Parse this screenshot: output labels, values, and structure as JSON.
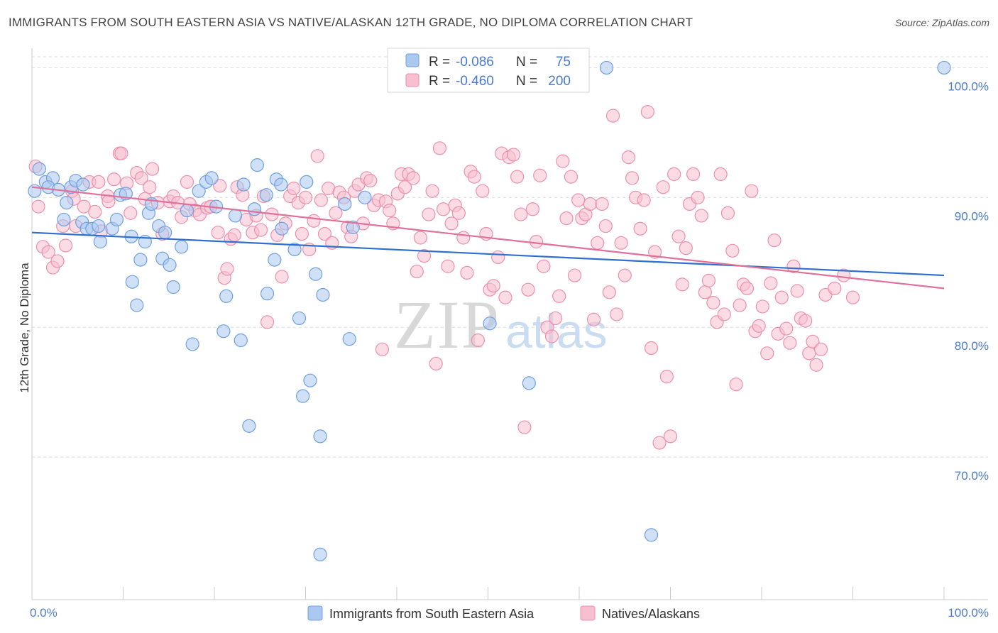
{
  "title": "IMMIGRANTS FROM SOUTH EASTERN ASIA VS NATIVE/ALASKAN 12TH GRADE, NO DIPLOMA CORRELATION CHART",
  "source": "Source: ZipAtlas.com",
  "watermark": {
    "zip": "ZIP",
    "atlas": "atlas"
  },
  "legend": {
    "r_label": "R =",
    "n_label": "N =",
    "rows": [
      {
        "r": "-0.086",
        "n": "75"
      },
      {
        "r": "-0.460",
        "n": "200"
      }
    ]
  },
  "colors": {
    "blue_fill": "#aac8f0",
    "blue_stroke": "#6f9fe0",
    "blue_line": "#2f6fcf",
    "pink_fill": "#f7bfd0",
    "pink_stroke": "#ec8fae",
    "pink_line": "#e0709a",
    "axis_text": "#4a7bd0",
    "grid": "#dcdcdc"
  },
  "chart_data": {
    "type": "scatter",
    "xlabel": "",
    "ylabel": "12th Grade, No Diploma",
    "xlim": [
      0,
      100
    ],
    "ylim": [
      60,
      101.5
    ],
    "x_tick_labels": [
      "0.0%",
      "100.0%"
    ],
    "y_ticks": [
      70,
      80,
      90,
      100
    ],
    "y_tick_labels": [
      "70.0%",
      "80.0%",
      "90.0%",
      "100.0%"
    ],
    "grid": true,
    "legend_position": "top-center",
    "series": [
      {
        "name": "Immigrants from South Eastern Asia",
        "color": "#6f9fe0",
        "trend": {
          "x": [
            0,
            100
          ],
          "y": [
            87.3,
            84.0
          ]
        },
        "points": [
          [
            0.3,
            90.5
          ],
          [
            0.8,
            92.2
          ],
          [
            1.5,
            91.2
          ],
          [
            2.3,
            91.5
          ],
          [
            1.8,
            90.8
          ],
          [
            2.9,
            90.6
          ],
          [
            3.5,
            88.3
          ],
          [
            3.8,
            89.6
          ],
          [
            4.3,
            90.8
          ],
          [
            4.8,
            91.3
          ],
          [
            5.6,
            91.0
          ],
          [
            5.5,
            88.1
          ],
          [
            6.0,
            87.6
          ],
          [
            6.6,
            87.6
          ],
          [
            7.5,
            86.6
          ],
          [
            7.3,
            87.8
          ],
          [
            8.8,
            87.6
          ],
          [
            9.7,
            90.2
          ],
          [
            9.3,
            88.3
          ],
          [
            10.3,
            90.3
          ],
          [
            11.0,
            83.5
          ],
          [
            10.9,
            87.0
          ],
          [
            11.5,
            81.7
          ],
          [
            11.9,
            85.2
          ],
          [
            12.4,
            86.6
          ],
          [
            12.8,
            88.8
          ],
          [
            13.1,
            89.5
          ],
          [
            13.9,
            87.8
          ],
          [
            14.3,
            85.3
          ],
          [
            14.6,
            87.3
          ],
          [
            15.1,
            84.8
          ],
          [
            15.5,
            83.1
          ],
          [
            16.4,
            86.2
          ],
          [
            17.0,
            89.0
          ],
          [
            17.6,
            78.7
          ],
          [
            18.3,
            90.5
          ],
          [
            19.1,
            91.2
          ],
          [
            19.7,
            91.5
          ],
          [
            20.2,
            89.3
          ],
          [
            21.3,
            82.4
          ],
          [
            21.0,
            79.7
          ],
          [
            22.3,
            88.6
          ],
          [
            22.9,
            79.0
          ],
          [
            23.2,
            91.0
          ],
          [
            23.8,
            72.4
          ],
          [
            24.4,
            89.1
          ],
          [
            24.7,
            92.5
          ],
          [
            25.7,
            90.2
          ],
          [
            25.8,
            82.6
          ],
          [
            26.6,
            85.2
          ],
          [
            26.8,
            91.4
          ],
          [
            27.3,
            91.0
          ],
          [
            27.4,
            87.6
          ],
          [
            28.8,
            86.0
          ],
          [
            29.3,
            80.7
          ],
          [
            29.7,
            74.7
          ],
          [
            30.1,
            91.2
          ],
          [
            30.5,
            75.9
          ],
          [
            31.1,
            84.1
          ],
          [
            31.6,
            71.6
          ],
          [
            31.9,
            82.5
          ],
          [
            31.6,
            62.5
          ],
          [
            34.3,
            89.5
          ],
          [
            34.8,
            79.1
          ],
          [
            35.2,
            87.7
          ],
          [
            36.5,
            90.0
          ],
          [
            50.2,
            80.3
          ],
          [
            54.5,
            75.7
          ],
          [
            58.8,
            100.0
          ],
          [
            63.0,
            100.0
          ],
          [
            67.9,
            64.0
          ],
          [
            100.0,
            100.0
          ]
        ]
      },
      {
        "name": "Natives/Alaskans",
        "color": "#ec8fae",
        "trend": {
          "x": [
            0,
            100
          ],
          "y": [
            90.8,
            83.0
          ]
        },
        "points": [
          [
            0.4,
            92.4
          ],
          [
            0.7,
            89.3
          ],
          [
            1.2,
            86.2
          ],
          [
            1.8,
            85.8
          ],
          [
            2.3,
            84.6
          ],
          [
            2.8,
            85.1
          ],
          [
            3.4,
            87.8
          ],
          [
            3.7,
            86.3
          ],
          [
            4.4,
            90.5
          ],
          [
            4.6,
            89.9
          ],
          [
            4.8,
            87.8
          ],
          [
            5.7,
            89.3
          ],
          [
            6.3,
            91.2
          ],
          [
            6.9,
            88.9
          ],
          [
            7.3,
            91.2
          ],
          [
            7.6,
            87.4
          ],
          [
            8.3,
            90.1
          ],
          [
            8.4,
            89.7
          ],
          [
            9.0,
            91.4
          ],
          [
            9.6,
            93.4
          ],
          [
            9.8,
            93.4
          ],
          [
            10.4,
            91.1
          ],
          [
            10.8,
            88.8
          ],
          [
            11.5,
            91.9
          ],
          [
            12.0,
            91.5
          ],
          [
            12.4,
            89.9
          ],
          [
            12.9,
            90.8
          ],
          [
            13.2,
            92.2
          ],
          [
            13.8,
            89.6
          ],
          [
            14.3,
            87.2
          ],
          [
            15.1,
            89.7
          ],
          [
            15.5,
            90.1
          ],
          [
            16.0,
            89.6
          ],
          [
            16.4,
            88.5
          ],
          [
            17.0,
            91.2
          ],
          [
            17.3,
            89.5
          ],
          [
            17.9,
            89.0
          ],
          [
            18.4,
            88.7
          ],
          [
            19.2,
            89.2
          ],
          [
            19.6,
            89.3
          ],
          [
            20.4,
            87.3
          ],
          [
            20.6,
            90.9
          ],
          [
            21.1,
            83.8
          ],
          [
            21.4,
            84.5
          ],
          [
            21.8,
            86.8
          ],
          [
            22.2,
            87.1
          ],
          [
            22.5,
            90.8
          ],
          [
            23.1,
            90.2
          ],
          [
            23.5,
            88.3
          ],
          [
            24.2,
            87.3
          ],
          [
            24.6,
            88.6
          ],
          [
            25.1,
            87.5
          ],
          [
            25.4,
            90.1
          ],
          [
            25.8,
            80.4
          ],
          [
            26.3,
            88.7
          ],
          [
            26.9,
            87.1
          ],
          [
            27.4,
            83.9
          ],
          [
            27.8,
            88.0
          ],
          [
            28.3,
            90.1
          ],
          [
            28.7,
            90.7
          ],
          [
            29.2,
            89.6
          ],
          [
            29.6,
            87.2
          ],
          [
            30.0,
            90.0
          ],
          [
            30.4,
            86.0
          ],
          [
            30.9,
            88.2
          ],
          [
            31.3,
            93.2
          ],
          [
            31.7,
            89.8
          ],
          [
            32.1,
            87.2
          ],
          [
            32.5,
            90.7
          ],
          [
            32.9,
            86.5
          ],
          [
            33.3,
            88.8
          ],
          [
            33.7,
            90.4
          ],
          [
            34.2,
            90.0
          ],
          [
            34.6,
            87.7
          ],
          [
            35.0,
            87.0
          ],
          [
            35.4,
            90.5
          ],
          [
            35.8,
            91.0
          ],
          [
            36.3,
            88.0
          ],
          [
            36.7,
            91.5
          ],
          [
            37.1,
            91.3
          ],
          [
            37.5,
            89.4
          ],
          [
            38.0,
            89.8
          ],
          [
            38.4,
            78.3
          ],
          [
            38.8,
            89.7
          ],
          [
            39.2,
            89.0
          ],
          [
            39.6,
            88.0
          ],
          [
            40.1,
            90.3
          ],
          [
            40.5,
            91.8
          ],
          [
            40.9,
            90.8
          ],
          [
            41.3,
            91.8
          ],
          [
            41.8,
            91.5
          ],
          [
            42.2,
            84.3
          ],
          [
            42.6,
            86.9
          ],
          [
            43.0,
            85.5
          ],
          [
            43.5,
            88.7
          ],
          [
            43.9,
            90.5
          ],
          [
            44.3,
            77.2
          ],
          [
            44.7,
            93.8
          ],
          [
            45.1,
            89.1
          ],
          [
            45.6,
            84.7
          ],
          [
            46.0,
            88.0
          ],
          [
            46.4,
            89.4
          ],
          [
            46.8,
            88.8
          ],
          [
            47.3,
            86.9
          ],
          [
            47.7,
            84.2
          ],
          [
            48.1,
            92.0
          ],
          [
            48.5,
            91.6
          ],
          [
            48.9,
            79.0
          ],
          [
            49.4,
            90.5
          ],
          [
            49.8,
            87.2
          ],
          [
            50.2,
            82.9
          ],
          [
            50.6,
            83.2
          ],
          [
            51.1,
            85.4
          ],
          [
            51.5,
            93.4
          ],
          [
            51.9,
            82.3
          ],
          [
            52.3,
            93.1
          ],
          [
            52.8,
            93.3
          ],
          [
            53.2,
            91.6
          ],
          [
            53.6,
            88.7
          ],
          [
            54.0,
            72.3
          ],
          [
            54.4,
            82.9
          ],
          [
            54.9,
            89.1
          ],
          [
            55.3,
            86.6
          ],
          [
            55.7,
            91.7
          ],
          [
            56.1,
            84.7
          ],
          [
            56.5,
            80.0
          ],
          [
            57.0,
            79.3
          ],
          [
            57.4,
            80.7
          ],
          [
            57.8,
            82.4
          ],
          [
            58.2,
            92.8
          ],
          [
            58.6,
            88.4
          ],
          [
            59.1,
            91.6
          ],
          [
            59.5,
            84.0
          ],
          [
            59.9,
            89.8
          ],
          [
            60.3,
            88.4
          ],
          [
            60.7,
            88.7
          ],
          [
            61.2,
            89.5
          ],
          [
            61.6,
            80.6
          ],
          [
            62.0,
            86.5
          ],
          [
            62.5,
            89.5
          ],
          [
            62.9,
            87.8
          ],
          [
            63.3,
            82.7
          ],
          [
            63.7,
            96.3
          ],
          [
            64.1,
            81.0
          ],
          [
            64.6,
            86.5
          ],
          [
            65.0,
            84.0
          ],
          [
            65.4,
            93.1
          ],
          [
            65.8,
            91.5
          ],
          [
            66.2,
            90.0
          ],
          [
            66.7,
            87.6
          ],
          [
            67.1,
            89.8
          ],
          [
            67.5,
            96.6
          ],
          [
            67.9,
            78.4
          ],
          [
            68.3,
            85.8
          ],
          [
            68.8,
            71.1
          ],
          [
            69.2,
            90.8
          ],
          [
            69.6,
            76.2
          ],
          [
            70.0,
            71.6
          ],
          [
            70.4,
            91.8
          ],
          [
            70.9,
            87.0
          ],
          [
            71.3,
            83.3
          ],
          [
            71.7,
            86.1
          ],
          [
            72.1,
            89.5
          ],
          [
            72.5,
            91.8
          ],
          [
            73.0,
            90.0
          ],
          [
            73.4,
            88.6
          ],
          [
            73.8,
            82.7
          ],
          [
            74.2,
            83.6
          ],
          [
            74.7,
            81.9
          ],
          [
            75.1,
            80.4
          ],
          [
            75.5,
            91.8
          ],
          [
            75.9,
            81.0
          ],
          [
            76.3,
            88.8
          ],
          [
            76.8,
            85.9
          ],
          [
            77.2,
            75.6
          ],
          [
            77.6,
            81.7
          ],
          [
            78.0,
            83.3
          ],
          [
            78.4,
            83.0
          ],
          [
            78.9,
            90.5
          ],
          [
            79.3,
            79.7
          ],
          [
            79.7,
            80.1
          ],
          [
            80.1,
            81.6
          ],
          [
            80.6,
            78.0
          ],
          [
            81.0,
            83.4
          ],
          [
            81.4,
            86.7
          ],
          [
            81.8,
            79.5
          ],
          [
            82.2,
            82.3
          ],
          [
            82.7,
            79.9
          ],
          [
            83.1,
            78.8
          ],
          [
            83.5,
            84.7
          ],
          [
            83.9,
            82.8
          ],
          [
            84.3,
            80.7
          ],
          [
            84.8,
            80.5
          ],
          [
            85.2,
            78.0
          ],
          [
            85.6,
            78.9
          ],
          [
            86.0,
            77.1
          ],
          [
            86.5,
            78.3
          ],
          [
            87.0,
            82.5
          ],
          [
            88.0,
            83.0
          ],
          [
            89.0,
            84.0
          ],
          [
            90.0,
            82.3
          ]
        ]
      }
    ]
  }
}
